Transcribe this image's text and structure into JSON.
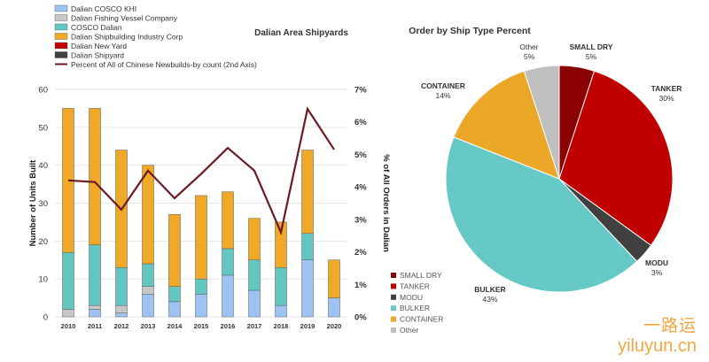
{
  "watermark": {
    "cn": "一路运",
    "en": "yiluyun.cn"
  },
  "chart_data": [
    {
      "type": "bar",
      "title": "Dalian Area Shipyards",
      "xlabel": "",
      "ylabel": "Number of Units Built",
      "y2label": "% of All Orders in Dalian",
      "ylim": [
        0,
        60
      ],
      "yticks": [
        0,
        10,
        20,
        30,
        40,
        50,
        60
      ],
      "y2lim": [
        0,
        7
      ],
      "y2ticks": [
        "0%",
        "1%",
        "2%",
        "3%",
        "4%",
        "5%",
        "6%",
        "7%"
      ],
      "categories": [
        "2010",
        "2011",
        "2012",
        "2013",
        "2014",
        "2015",
        "2016",
        "2017",
        "2018",
        "2019",
        "2020"
      ],
      "stacked": true,
      "legend_position": "top-left",
      "series": [
        {
          "name": "Dalian COSCO KHI",
          "color": "#9ec3f2",
          "values": [
            0,
            2,
            1,
            6,
            4,
            6,
            11,
            7,
            3,
            15,
            5
          ]
        },
        {
          "name": "Dalian Fishing Vessel Company",
          "color": "#c7c7c7",
          "values": [
            2,
            1,
            2,
            2,
            0,
            0,
            0,
            0,
            0,
            0,
            0
          ]
        },
        {
          "name": "COSCO Dalian",
          "color": "#63c6c1",
          "values": [
            15,
            16,
            10,
            6,
            4,
            4,
            7,
            8,
            10,
            7,
            0
          ]
        },
        {
          "name": "Dalian Shipbuilding Industry Corp",
          "color": "#f0a927",
          "values": [
            38,
            36,
            31,
            26,
            19,
            22,
            15,
            11,
            12,
            22,
            10
          ]
        },
        {
          "name": "Dalian New Yard",
          "color": "#c00000",
          "values": [
            0,
            0,
            0,
            0,
            0,
            0,
            0,
            0,
            0,
            0,
            0
          ]
        },
        {
          "name": "Dalian Shipyard",
          "color": "#404040",
          "values": [
            0,
            0,
            0,
            0,
            0,
            0,
            0,
            0,
            0,
            0,
            0
          ]
        }
      ],
      "line_series": {
        "name": "Percent of All of Chinese Newbuilds-by count (2nd Axis)",
        "color": "#6b1a22",
        "axis": "secondary",
        "values": [
          4.2,
          4.15,
          3.3,
          4.5,
          3.65,
          4.4,
          5.2,
          4.5,
          2.6,
          6.4,
          5.15
        ]
      }
    },
    {
      "type": "pie",
      "title": "Order by Ship Type Percent",
      "legend_position": "bottom-left",
      "slices": [
        {
          "name": "SMALL DRY",
          "label": "SMALL DRY",
          "pct_label": "5%",
          "value": 5,
          "color": "#8b0000"
        },
        {
          "name": "TANKER",
          "label": "TANKER",
          "pct_label": "30%",
          "value": 30,
          "color": "#c00000"
        },
        {
          "name": "MODU",
          "label": "MODU",
          "pct_label": "3%",
          "value": 3,
          "color": "#404040"
        },
        {
          "name": "BULKER",
          "label": "BULKER",
          "pct_label": "43%",
          "value": 43,
          "color": "#67c9c6"
        },
        {
          "name": "CONTAINER",
          "label": "CONTAINER",
          "pct_label": "14%",
          "value": 14,
          "color": "#eba728"
        },
        {
          "name": "Other",
          "label": "Other",
          "pct_label": "5%",
          "value": 5,
          "color": "#bfbfbf"
        }
      ]
    }
  ]
}
